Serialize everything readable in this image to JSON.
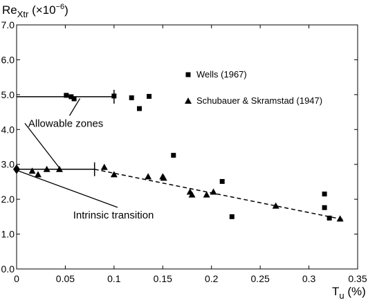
{
  "chart_data": {
    "type": "scatter",
    "xlabel": "T",
    "xlabel_sub": "u",
    "xlabel_unit": " (%)",
    "ylabel": "Re",
    "ylabel_sub": "Xtr",
    "ylabel_unit": " (×10",
    "ylabel_exp": "−6",
    "ylabel_close": ")",
    "xlim": [
      0,
      0.35
    ],
    "ylim": [
      0.0,
      7.0
    ],
    "xticks": [
      "0",
      "0.05",
      "0.1",
      "0.15",
      "0.2",
      "0.25",
      "0.3",
      "0.35"
    ],
    "yticks": [
      "0.0",
      "1.0",
      "2.0",
      "3.0",
      "4.0",
      "5.0",
      "6.0",
      "7.0"
    ],
    "grid": false,
    "legend_position": "top-right",
    "series": [
      {
        "name": "Wells (1967)",
        "marker": "square",
        "x": [
          0.051,
          0.056,
          0.059,
          0.1,
          0.118,
          0.126,
          0.136,
          0.161,
          0.211,
          0.221,
          0.316,
          0.316,
          0.321
        ],
        "y": [
          4.98,
          4.94,
          4.88,
          4.96,
          4.91,
          4.6,
          4.95,
          3.26,
          2.51,
          1.5,
          2.15,
          1.76,
          1.46
        ]
      },
      {
        "name": "Schubauer & Skramstad (1947)",
        "marker": "triangle",
        "x": [
          0.016,
          0.022,
          0.031,
          0.044,
          0.09,
          0.1,
          0.135,
          0.15,
          0.151,
          0.178,
          0.18,
          0.195,
          0.202,
          0.266,
          0.332
        ],
        "y": [
          2.81,
          2.71,
          2.86,
          2.86,
          2.92,
          2.71,
          2.65,
          2.65,
          2.61,
          2.21,
          2.13,
          2.13,
          2.21,
          1.81,
          1.44
        ]
      }
    ],
    "lines": [
      {
        "style": "solid",
        "x": [
          0,
          0.1
        ],
        "y": [
          4.94,
          4.94
        ],
        "end_tick": true
      },
      {
        "style": "solid",
        "x": [
          0,
          0.08
        ],
        "y": [
          2.86,
          2.86
        ],
        "end_tick": true
      },
      {
        "style": "dashed",
        "x": [
          0.08,
          0.335
        ],
        "y": [
          2.86,
          1.42
        ]
      }
    ],
    "point_markers": [
      {
        "marker": "diamond",
        "x": 0,
        "y": 2.86
      }
    ],
    "annotations": [
      {
        "text": "Allowable zones",
        "x": 0.012,
        "y": 4.08,
        "pointers": [
          [
            0.065,
            4.89
          ],
          [
            0.045,
            2.86
          ]
        ]
      },
      {
        "text": "Intrinsic transition",
        "x": 0.058,
        "y": 1.45,
        "pointers": [
          [
            0.002,
            2.81
          ]
        ]
      }
    ]
  }
}
